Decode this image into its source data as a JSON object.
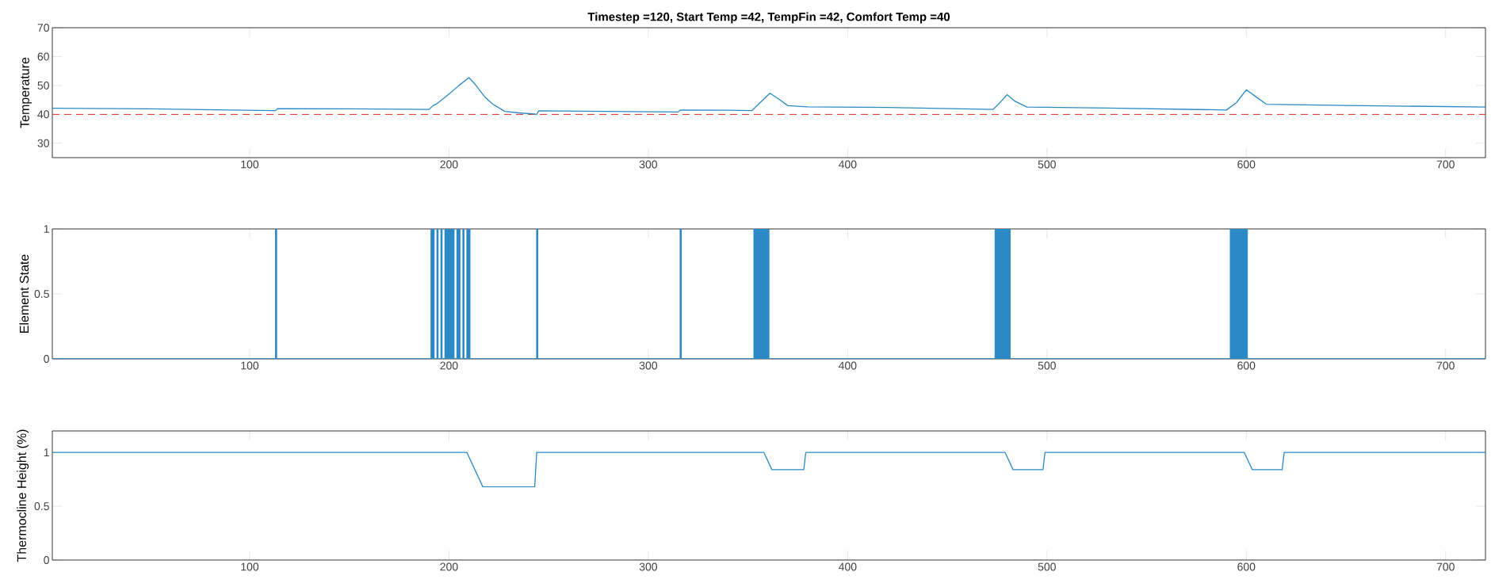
{
  "chart_data": [
    {
      "type": "line",
      "title": "Timestep =120, Start Temp =42, TempFin =42, Comfort Temp =40",
      "ylabel": "Temperature",
      "xlim": [
        1,
        720
      ],
      "ylim": [
        25,
        70
      ],
      "xticks": [
        100,
        200,
        300,
        400,
        500,
        600,
        700
      ],
      "yticks": [
        30,
        40,
        50,
        60,
        70
      ],
      "series": [
        {
          "color": "#2b8ac6",
          "x": [
            1,
            50,
            112,
            113,
            114,
            150,
            190,
            192,
            194,
            200,
            205,
            210,
            213,
            218,
            222,
            228,
            235,
            243,
            244,
            245,
            280,
            315,
            316,
            340,
            352,
            356,
            361,
            365,
            370,
            380,
            420,
            473,
            477,
            480,
            484,
            490,
            530,
            590,
            595,
            600,
            604,
            610,
            650,
            720
          ],
          "values": [
            42.1,
            41.9,
            41.3,
            41.3,
            42,
            41.9,
            41.7,
            43,
            43.7,
            47,
            50,
            52.7,
            50.5,
            46,
            43.5,
            41,
            40.5,
            40.1,
            40,
            41.2,
            41,
            40.8,
            41.5,
            41.4,
            41.3,
            44,
            47.3,
            45.5,
            43,
            42.6,
            42.4,
            41.7,
            44.5,
            46.8,
            44.5,
            42.5,
            42.2,
            41.5,
            44,
            48.5,
            46.5,
            43.5,
            43.1,
            42.5
          ]
        }
      ],
      "ref_lines": [
        {
          "axis": "y",
          "value": 40,
          "color": "#e0453c",
          "line_style": "dashed"
        }
      ]
    },
    {
      "type": "line",
      "ylabel": "Element State",
      "xlim": [
        1,
        720
      ],
      "ylim": [
        0,
        1
      ],
      "xticks": [
        100,
        200,
        300,
        400,
        500,
        600,
        700
      ],
      "yticks": [
        0,
        0.5,
        1
      ],
      "series": [
        {
          "color": "#2b8ac6",
          "x": [
            1,
            113,
            113,
            113.5,
            113.5,
            191,
            191,
            191.5,
            191.5,
            192,
            192,
            192.5,
            192.5,
            194,
            194,
            194.5,
            194.5,
            196,
            196,
            196.5,
            196.5,
            198,
            198,
            198.5,
            198.5,
            199,
            199,
            199.5,
            199.5,
            200,
            200,
            200.5,
            200.5,
            201,
            201,
            201.5,
            201.5,
            202,
            202,
            202.5,
            202.5,
            204,
            204,
            204.5,
            204.5,
            205,
            205,
            205.5,
            205.5,
            207,
            207,
            207.5,
            207.5,
            209,
            209,
            209.5,
            209.5,
            210,
            210,
            210.5,
            210.5,
            244,
            244,
            244.5,
            244.5,
            316,
            316,
            316.5,
            316.5,
            353,
            353,
            353.5,
            353.5,
            354,
            354,
            354.5,
            354.5,
            355,
            355,
            355.5,
            355.5,
            356,
            356,
            356.5,
            356.5,
            357,
            357,
            357.5,
            357.5,
            358,
            358,
            358.5,
            358.5,
            359,
            359,
            359.5,
            359.5,
            360,
            360,
            360.5,
            360.5,
            474,
            474,
            474.5,
            474.5,
            475,
            475,
            475.5,
            475.5,
            476,
            476,
            476.5,
            476.5,
            477,
            477,
            477.5,
            477.5,
            478,
            478,
            478.5,
            478.5,
            479,
            479,
            479.5,
            479.5,
            480,
            480,
            480.5,
            480.5,
            481,
            481,
            481.5,
            481.5,
            592,
            592,
            592.5,
            592.5,
            593,
            593,
            593.5,
            593.5,
            594,
            594,
            594.5,
            594.5,
            595,
            595,
            595.5,
            595.5,
            596,
            596,
            596.5,
            596.5,
            597,
            597,
            597.5,
            597.5,
            598,
            598,
            598.5,
            598.5,
            599,
            599,
            599.5,
            599.5,
            600,
            600,
            600.5,
            600.5,
            720
          ],
          "values": [
            0,
            0,
            1,
            1,
            0,
            0,
            1,
            1,
            0,
            0,
            1,
            1,
            0,
            0,
            1,
            1,
            0,
            0,
            1,
            1,
            0,
            0,
            1,
            1,
            0,
            0,
            1,
            1,
            0,
            0,
            1,
            1,
            0,
            0,
            1,
            1,
            0,
            0,
            1,
            1,
            0,
            0,
            1,
            1,
            0,
            0,
            1,
            1,
            0,
            0,
            1,
            1,
            0,
            0,
            1,
            1,
            0,
            0,
            1,
            1,
            0,
            0,
            1,
            1,
            0,
            0,
            1,
            1,
            0,
            0,
            1,
            1,
            0,
            0,
            1,
            1,
            0,
            0,
            1,
            1,
            0,
            0,
            1,
            1,
            0,
            0,
            1,
            1,
            0,
            0,
            1,
            1,
            0,
            0,
            1,
            1,
            0,
            0,
            1,
            1,
            0,
            0,
            1,
            1,
            0,
            0,
            1,
            1,
            0,
            0,
            1,
            1,
            0,
            0,
            1,
            1,
            0,
            0,
            1,
            1,
            0,
            0,
            1,
            1,
            0,
            0,
            1,
            1,
            0,
            0,
            1,
            1,
            0,
            0,
            1,
            1,
            0,
            0,
            1,
            1,
            0,
            0,
            1,
            1,
            0,
            0,
            1,
            1,
            0,
            0,
            1,
            1,
            0,
            0,
            1,
            1,
            0,
            0,
            1,
            1,
            0,
            0,
            1,
            1,
            0,
            0,
            1,
            1,
            0,
            0
          ]
        }
      ]
    },
    {
      "type": "line",
      "ylabel": "Thermocline Height (%)",
      "xlim": [
        1,
        720
      ],
      "ylim": [
        0,
        1.2
      ],
      "xticks": [
        100,
        200,
        300,
        400,
        500,
        600,
        700
      ],
      "yticks": [
        0,
        0.5,
        1
      ],
      "series": [
        {
          "color": "#2b8ac6",
          "x": [
            1,
            209,
            217,
            243,
            244,
            358,
            362,
            378,
            379,
            479,
            483,
            498,
            499,
            599,
            603,
            618,
            619,
            720
          ],
          "values": [
            1,
            1,
            0.68,
            0.68,
            1,
            1,
            0.84,
            0.84,
            1,
            1,
            0.84,
            0.84,
            1,
            1,
            0.84,
            0.84,
            1,
            1
          ]
        }
      ]
    }
  ]
}
